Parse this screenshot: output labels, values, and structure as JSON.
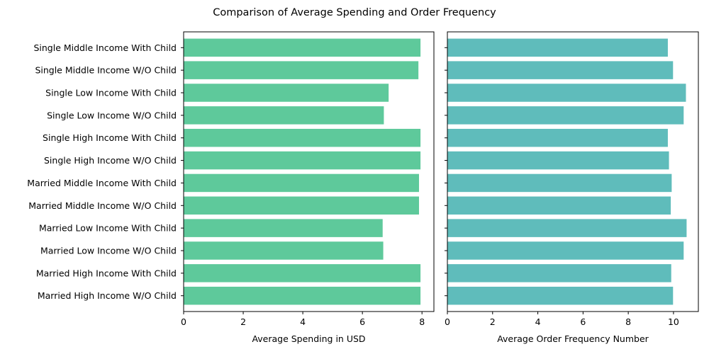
{
  "chart_data": {
    "type": "bar",
    "orientation": "horizontal",
    "title": "Comparison of Average Spending and Order Frequency",
    "categories": [
      "Married High Income W/O Child",
      "Married High Income With Child",
      "Married Low Income W/O Child",
      "Married Low Income With Child",
      "Married Middle Income W/O Child",
      "Married Middle Income With Child",
      "Single High Income W/O Child",
      "Single High Income With Child",
      "Single Low Income W/O Child",
      "Single Low Income With Child",
      "Single Middle Income W/O Child",
      "Single Middle Income With Child"
    ],
    "panels": [
      {
        "xlabel": "Average Spending in USD",
        "xlim": [
          0,
          8.4
        ],
        "xticks": [
          0,
          2,
          4,
          6,
          8
        ],
        "color": "#5ec99b",
        "values": [
          7.95,
          7.95,
          6.7,
          6.68,
          7.9,
          7.9,
          7.95,
          7.95,
          6.72,
          6.88,
          7.88,
          7.95
        ]
      },
      {
        "xlabel": "Average Order Frequency Number",
        "xlim": [
          0,
          11.1
        ],
        "xticks": [
          0,
          2,
          4,
          6,
          8,
          10
        ],
        "color": "#5fbcbb",
        "values": [
          9.98,
          9.9,
          10.45,
          10.58,
          9.88,
          9.92,
          9.8,
          9.75,
          10.45,
          10.55,
          9.98,
          9.75
        ]
      }
    ]
  }
}
